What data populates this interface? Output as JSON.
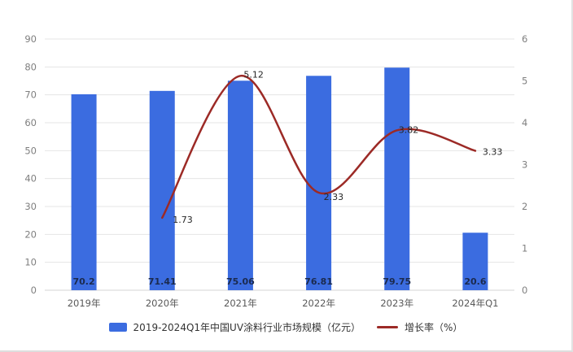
{
  "chart_data": {
    "type": "combo",
    "categories": [
      "2019年",
      "2020年",
      "2021年",
      "2022年",
      "2023年",
      "2024年Q1"
    ],
    "series": [
      {
        "name": "2019-2024Q1年中国UV涂料行业市场规模（亿元）",
        "type": "bar",
        "axis": "left",
        "color": "#3b6ce0",
        "label_color": "#1b2a4e",
        "values": [
          70.2,
          71.41,
          75.06,
          76.81,
          79.75,
          20.6
        ],
        "labels": [
          "70.2",
          "71.41",
          "75.06",
          "76.81",
          "79.75",
          "20.6"
        ]
      },
      {
        "name": "增长率（%）",
        "type": "line",
        "axis": "right",
        "color": "#9c2a26",
        "label_color": "#262626",
        "values": [
          null,
          1.73,
          5.12,
          2.33,
          3.82,
          3.33
        ],
        "labels": [
          "",
          "1.73",
          "5.12",
          "2.33",
          "3.82",
          "3.33"
        ]
      }
    ],
    "left_axis": {
      "min": 0,
      "max": 90,
      "step": 10,
      "ticks": [
        "0",
        "10",
        "20",
        "30",
        "40",
        "50",
        "60",
        "70",
        "80",
        "90"
      ]
    },
    "right_axis": {
      "min": 0,
      "max": 6,
      "step": 1,
      "ticks": [
        "0",
        "1",
        "2",
        "3",
        "4",
        "5",
        "6"
      ]
    },
    "grid": true,
    "legend_position": "bottom",
    "title": ""
  },
  "legend": {
    "bar_label": "2019-2024Q1年中国UV涂料行业市场规模（亿元）",
    "line_label": "增长率（%）"
  },
  "colors": {
    "grid": "#e4e4e4",
    "baseline": "#d6d6d6",
    "axis_tick_text": "#7f7f7f",
    "x_tick_text": "#595959",
    "background": "#ffffff"
  }
}
